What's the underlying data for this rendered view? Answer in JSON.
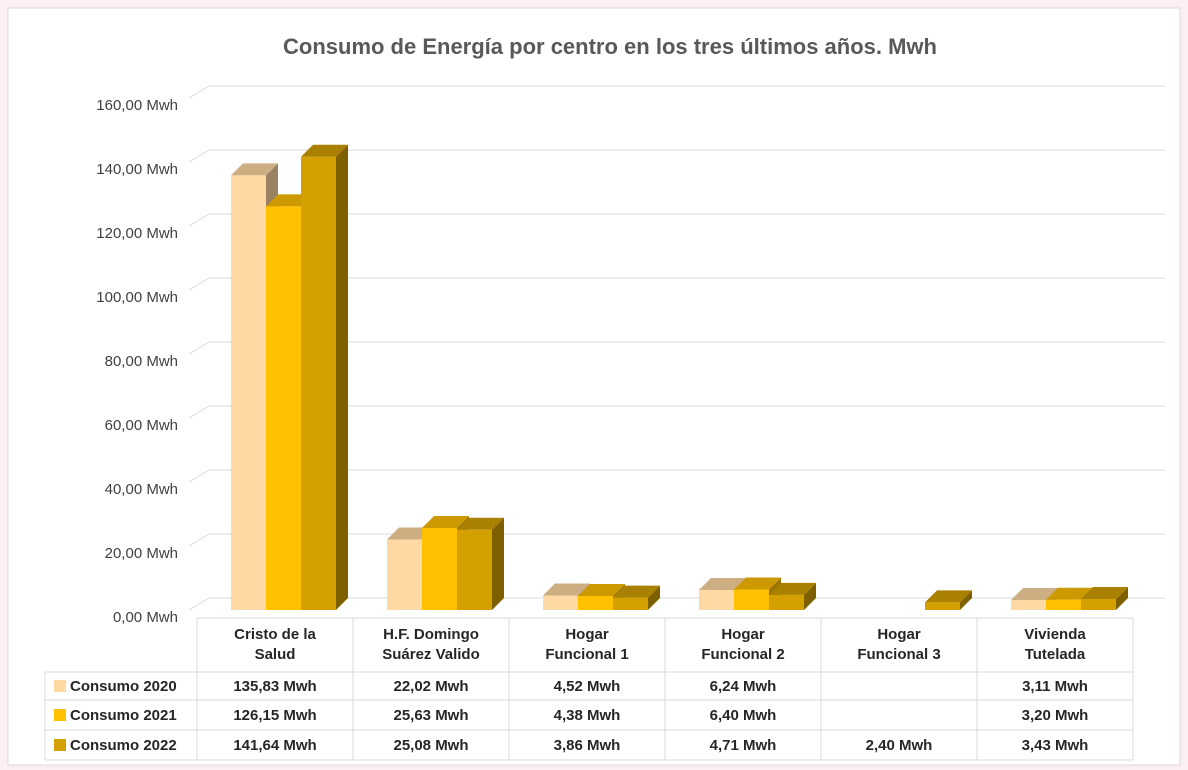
{
  "chart_data": {
    "type": "bar3d",
    "title": "Consumo de Energía por centro en los tres últimos años. Mwh",
    "categories": [
      "Cristo de la Salud",
      "H.F. Domingo Suárez Valido",
      "Hogar Funcional 1",
      "Hogar Funcional 2",
      "Hogar Funcional 3",
      "Vivienda Tutelada"
    ],
    "series": [
      {
        "name": "Consumo 2020",
        "color": "#FFD9A3",
        "values": [
          135.83,
          22.02,
          4.52,
          6.24,
          null,
          3.11
        ],
        "value_labels": [
          "135,83 Mwh",
          "22,02 Mwh",
          "4,52 Mwh",
          "6,24 Mwh",
          null,
          "3,11 Mwh"
        ]
      },
      {
        "name": "Consumo 2021",
        "color": "#FFC000",
        "values": [
          126.15,
          25.63,
          4.38,
          6.4,
          null,
          3.2
        ],
        "value_labels": [
          "126,15 Mwh",
          "25,63 Mwh",
          "4,38 Mwh",
          "6,40 Mwh",
          null,
          "3,20 Mwh"
        ]
      },
      {
        "name": "Consumo 2022",
        "color": "#D4A000",
        "values": [
          141.64,
          25.08,
          3.86,
          4.71,
          2.4,
          3.43
        ],
        "value_labels": [
          "141,64 Mwh",
          "25,08 Mwh",
          "3,86 Mwh",
          "4,71 Mwh",
          "2,40 Mwh",
          "3,43 Mwh"
        ]
      }
    ],
    "ylim": [
      0,
      160
    ],
    "yticks": [
      {
        "value": 0,
        "label": "0,00 Mwh"
      },
      {
        "value": 20,
        "label": "20,00 Mwh"
      },
      {
        "value": 40,
        "label": "40,00 Mwh"
      },
      {
        "value": 60,
        "label": "60,00 Mwh"
      },
      {
        "value": 80,
        "label": "80,00 Mwh"
      },
      {
        "value": 100,
        "label": "100,00 Mwh"
      },
      {
        "value": 120,
        "label": "120,00 Mwh"
      },
      {
        "value": 140,
        "label": "140,00 Mwh"
      },
      {
        "value": 160,
        "label": "160,00 Mwh"
      }
    ],
    "grid": true
  }
}
